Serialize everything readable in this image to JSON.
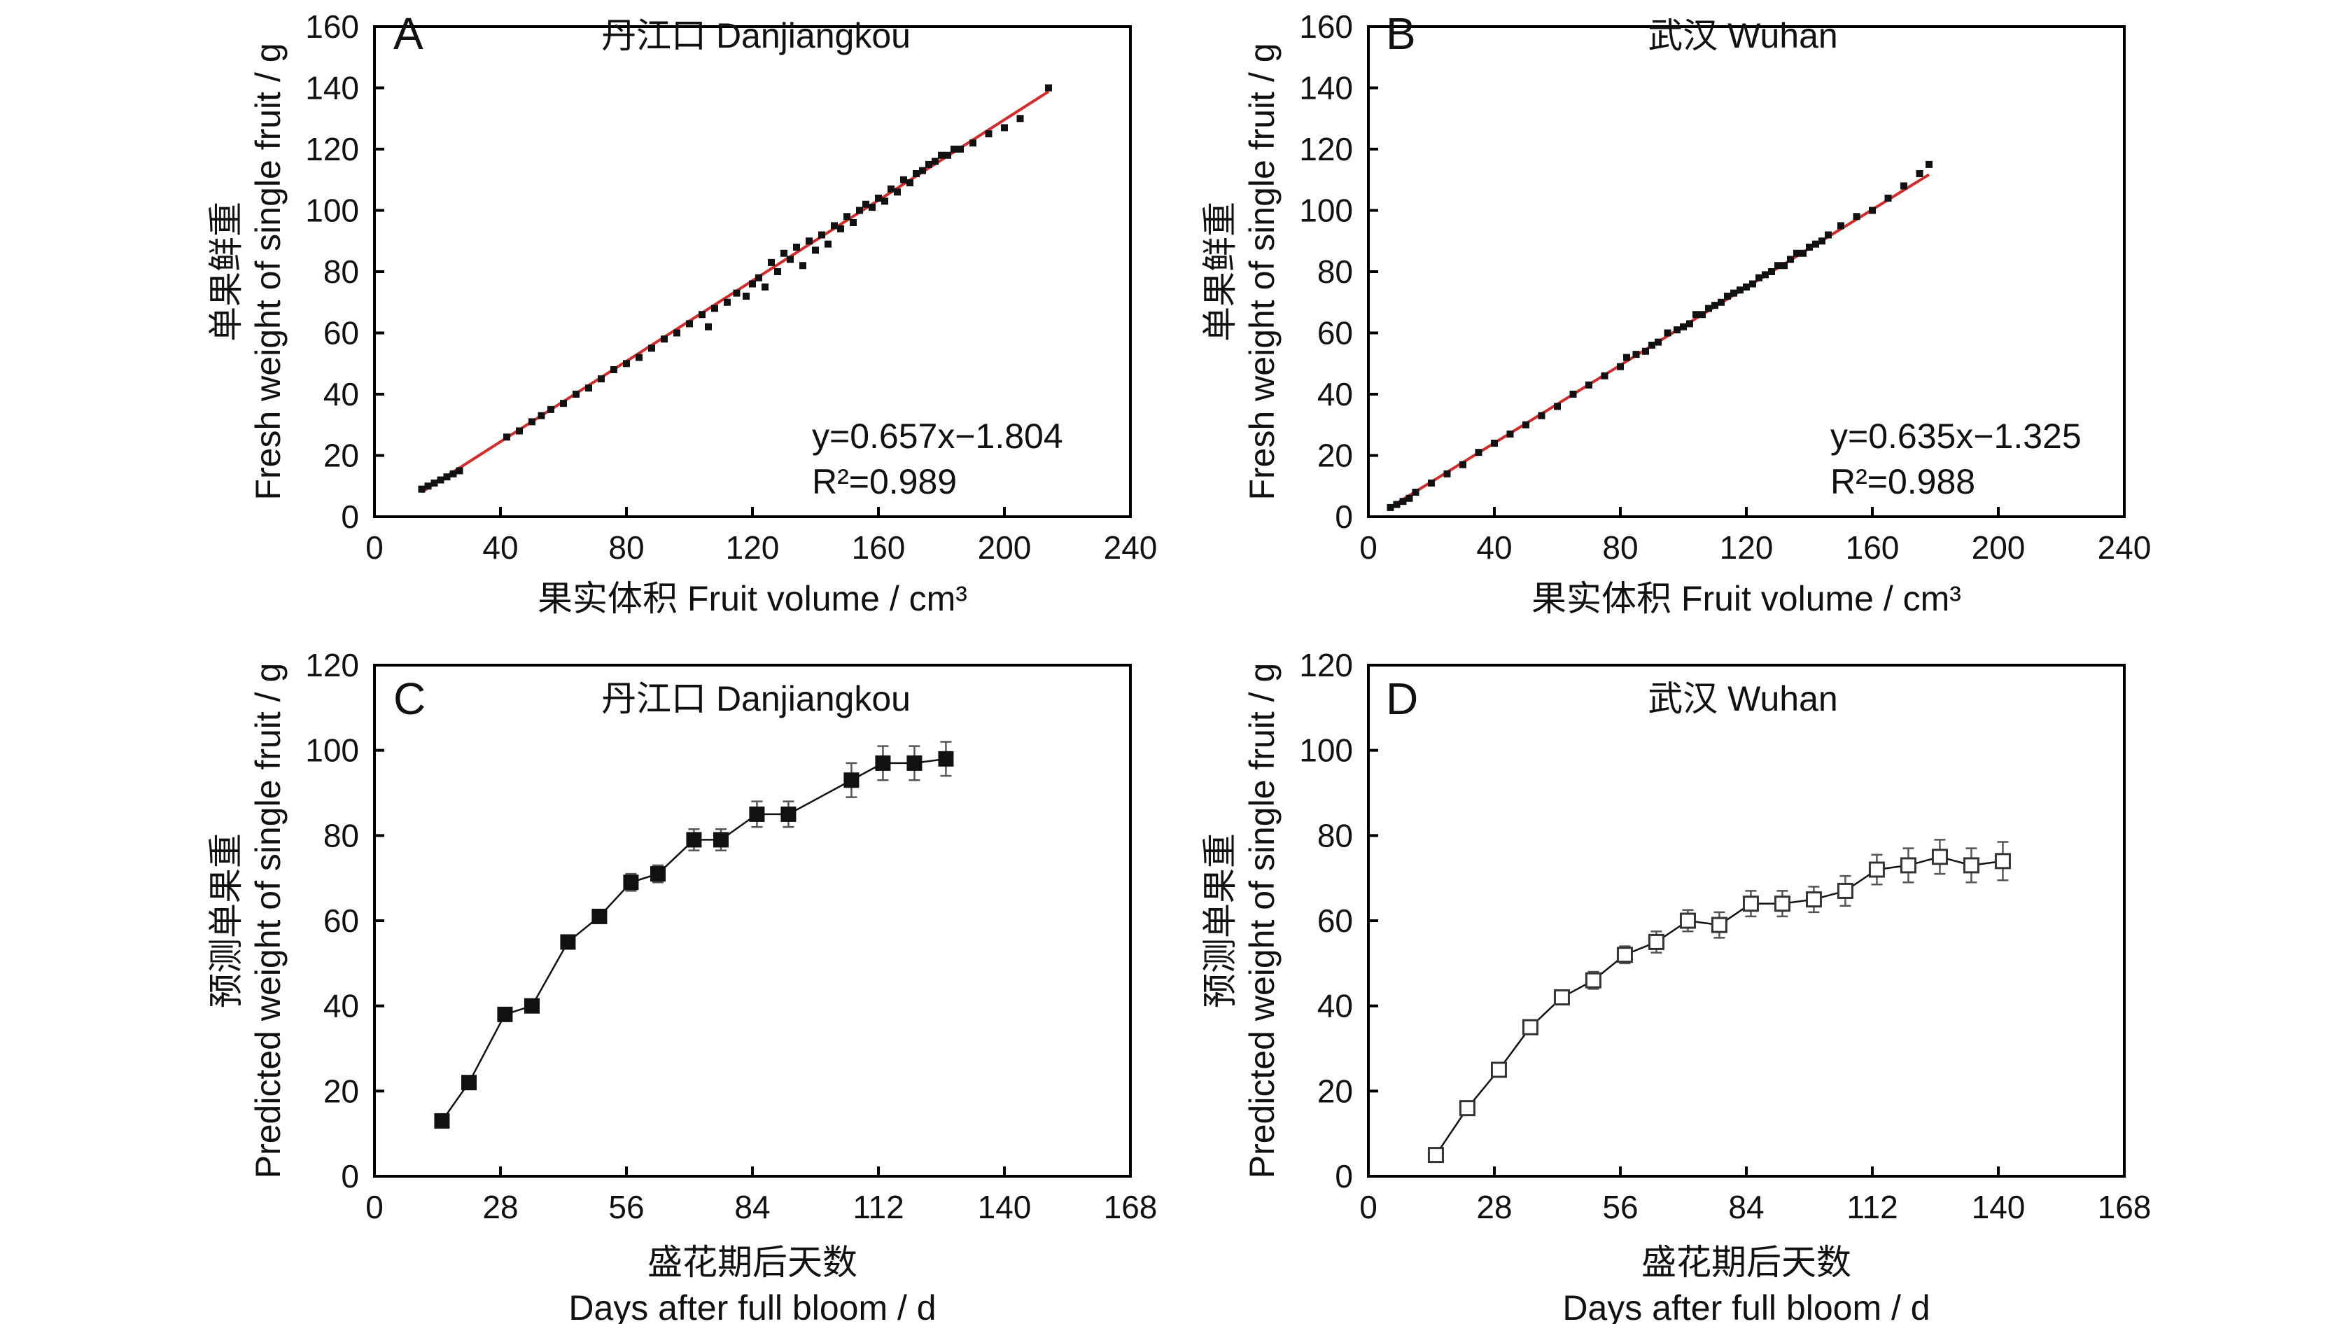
{
  "chart_data": [
    {
      "id": "A",
      "type": "scatter",
      "panel_letter": "A",
      "title": "丹江口 Danjiangkou",
      "xlabel": "果实体积 Fruit volume / cm³",
      "ylabel_cn": "单果鲜重",
      "ylabel_en": "Fresh weight of single fruit / g",
      "xlim": [
        0,
        240
      ],
      "ylim": [
        0,
        160
      ],
      "xticks": [
        0,
        40,
        80,
        120,
        160,
        200,
        240
      ],
      "yticks": [
        0,
        20,
        40,
        60,
        80,
        100,
        120,
        140,
        160
      ],
      "fit": {
        "slope": 0.657,
        "intercept": -1.804,
        "x_range": [
          15,
          214
        ]
      },
      "equation": "y=0.657x−1.804",
      "r2": "R²=0.989",
      "points": [
        [
          15,
          9
        ],
        [
          17,
          10
        ],
        [
          19,
          11
        ],
        [
          21,
          12
        ],
        [
          23,
          13
        ],
        [
          25,
          14
        ],
        [
          27,
          15
        ],
        [
          42,
          26
        ],
        [
          46,
          28
        ],
        [
          50,
          31
        ],
        [
          53,
          33
        ],
        [
          56,
          35
        ],
        [
          60,
          37
        ],
        [
          64,
          40
        ],
        [
          68,
          42
        ],
        [
          72,
          45
        ],
        [
          76,
          48
        ],
        [
          80,
          50
        ],
        [
          84,
          52
        ],
        [
          88,
          55
        ],
        [
          92,
          58
        ],
        [
          96,
          60
        ],
        [
          100,
          63
        ],
        [
          104,
          66
        ],
        [
          106,
          62
        ],
        [
          108,
          68
        ],
        [
          112,
          70
        ],
        [
          115,
          73
        ],
        [
          118,
          72
        ],
        [
          120,
          76
        ],
        [
          122,
          78
        ],
        [
          124,
          75
        ],
        [
          126,
          83
        ],
        [
          128,
          80
        ],
        [
          130,
          86
        ],
        [
          132,
          84
        ],
        [
          134,
          88
        ],
        [
          136,
          82
        ],
        [
          138,
          90
        ],
        [
          140,
          87
        ],
        [
          142,
          92
        ],
        [
          144,
          89
        ],
        [
          146,
          95
        ],
        [
          148,
          94
        ],
        [
          150,
          98
        ],
        [
          152,
          96
        ],
        [
          154,
          100
        ],
        [
          156,
          102
        ],
        [
          158,
          101
        ],
        [
          160,
          104
        ],
        [
          162,
          103
        ],
        [
          164,
          107
        ],
        [
          166,
          106
        ],
        [
          168,
          110
        ],
        [
          170,
          109
        ],
        [
          172,
          112
        ],
        [
          174,
          113
        ],
        [
          176,
          115
        ],
        [
          178,
          116
        ],
        [
          180,
          118
        ],
        [
          182,
          118
        ],
        [
          184,
          120
        ],
        [
          186,
          120
        ],
        [
          190,
          122
        ],
        [
          195,
          125
        ],
        [
          200,
          127
        ],
        [
          205,
          130
        ],
        [
          214,
          140
        ]
      ]
    },
    {
      "id": "B",
      "type": "scatter",
      "panel_letter": "B",
      "title": "武汉 Wuhan",
      "xlabel": "果实体积 Fruit volume / cm³",
      "ylabel_cn": "单果鲜重",
      "ylabel_en": "Fresh weight of single fruit / g",
      "xlim": [
        0,
        240
      ],
      "ylim": [
        0,
        160
      ],
      "xticks": [
        0,
        40,
        80,
        120,
        160,
        200,
        240
      ],
      "yticks": [
        0,
        20,
        40,
        60,
        80,
        100,
        120,
        140,
        160
      ],
      "fit": {
        "slope": 0.635,
        "intercept": -1.325,
        "x_range": [
          7,
          178
        ]
      },
      "equation": "y=0.635x−1.325",
      "r2": "R²=0.988",
      "points": [
        [
          7,
          3
        ],
        [
          9,
          4
        ],
        [
          11,
          5
        ],
        [
          13,
          6
        ],
        [
          15,
          8
        ],
        [
          20,
          11
        ],
        [
          25,
          14
        ],
        [
          30,
          17
        ],
        [
          35,
          21
        ],
        [
          40,
          24
        ],
        [
          45,
          27
        ],
        [
          50,
          30
        ],
        [
          55,
          33
        ],
        [
          60,
          36
        ],
        [
          65,
          40
        ],
        [
          70,
          43
        ],
        [
          75,
          46
        ],
        [
          80,
          49
        ],
        [
          82,
          52
        ],
        [
          85,
          53
        ],
        [
          88,
          54
        ],
        [
          90,
          56
        ],
        [
          92,
          57
        ],
        [
          95,
          60
        ],
        [
          98,
          61
        ],
        [
          100,
          62
        ],
        [
          102,
          63
        ],
        [
          104,
          66
        ],
        [
          106,
          66
        ],
        [
          108,
          68
        ],
        [
          110,
          69
        ],
        [
          112,
          70
        ],
        [
          114,
          72
        ],
        [
          116,
          73
        ],
        [
          118,
          74
        ],
        [
          120,
          75
        ],
        [
          122,
          76
        ],
        [
          124,
          78
        ],
        [
          126,
          79
        ],
        [
          128,
          80
        ],
        [
          130,
          82
        ],
        [
          132,
          82
        ],
        [
          134,
          84
        ],
        [
          136,
          86
        ],
        [
          138,
          86
        ],
        [
          140,
          88
        ],
        [
          142,
          89
        ],
        [
          144,
          90
        ],
        [
          146,
          92
        ],
        [
          150,
          95
        ],
        [
          155,
          98
        ],
        [
          160,
          100
        ],
        [
          165,
          104
        ],
        [
          170,
          108
        ],
        [
          175,
          112
        ],
        [
          178,
          115
        ]
      ]
    },
    {
      "id": "C",
      "type": "line",
      "panel_letter": "C",
      "title": "丹江口 Danjiangkou",
      "xlabel_cn": "盛花期后天数",
      "xlabel_en": "Days after full bloom / d",
      "ylabel_cn": "预测单果重",
      "ylabel_en": "Predicted weight of single fruit / g",
      "xlim": [
        0,
        168
      ],
      "ylim": [
        0,
        120
      ],
      "xticks": [
        0,
        28,
        56,
        84,
        112,
        140,
        168
      ],
      "yticks": [
        0,
        20,
        40,
        60,
        80,
        100,
        120
      ],
      "marker": "filled-square",
      "x": [
        15,
        21,
        29,
        35,
        43,
        50,
        57,
        63,
        71,
        77,
        85,
        92,
        106,
        113,
        120,
        127
      ],
      "y": [
        13,
        22,
        38,
        40,
        55,
        61,
        69,
        71,
        79,
        79,
        85,
        85,
        93,
        97,
        97,
        98
      ],
      "err": [
        1,
        1,
        1,
        1,
        1.2,
        1.5,
        2,
        2,
        2.5,
        2.5,
        3,
        3,
        4,
        4,
        4,
        4
      ]
    },
    {
      "id": "D",
      "type": "line",
      "panel_letter": "D",
      "title": "武汉 Wuhan",
      "xlabel_cn": "盛花期后天数",
      "xlabel_en": "Days after full bloom / d",
      "ylabel_cn": "预测单果重",
      "ylabel_en": "Predicted weight of single fruit / g",
      "xlim": [
        0,
        168
      ],
      "ylim": [
        0,
        120
      ],
      "xticks": [
        0,
        28,
        56,
        84,
        112,
        140,
        168
      ],
      "yticks": [
        0,
        20,
        40,
        60,
        80,
        100,
        120
      ],
      "marker": "open-square",
      "x": [
        15,
        22,
        29,
        36,
        43,
        50,
        57,
        64,
        71,
        78,
        85,
        92,
        99,
        106,
        113,
        120,
        127,
        134,
        141
      ],
      "y": [
        5,
        16,
        25,
        35,
        42,
        46,
        52,
        55,
        60,
        59,
        64,
        64,
        65,
        67,
        72,
        73,
        75,
        73,
        74
      ],
      "err": [
        1,
        1,
        1,
        1.2,
        1.5,
        2,
        2,
        2.5,
        2.5,
        3,
        3,
        3,
        3,
        3.5,
        3.5,
        4,
        4,
        4,
        4.5
      ]
    }
  ]
}
